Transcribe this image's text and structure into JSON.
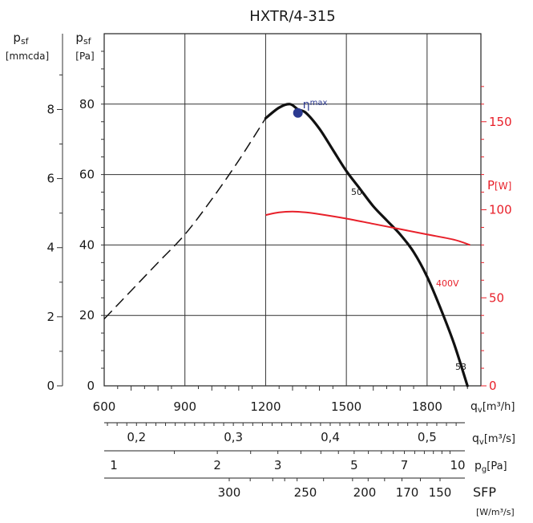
{
  "chart_data": {
    "type": "line",
    "title": "HXTR/4-315",
    "left_axis_outer": {
      "label_main": "p",
      "label_sub": "sf",
      "unit": "[mmcda]",
      "ticks": [
        "0",
        "2",
        "4",
        "6",
        "8"
      ]
    },
    "left_axis_inner": {
      "label_main": "p",
      "label_sub": "sf",
      "unit": "[Pa]",
      "ticks": [
        "0",
        "20",
        "40",
        "60",
        "80"
      ],
      "ylim": [
        0,
        100
      ]
    },
    "right_axis": {
      "label_main": "P",
      "unit": "[W]",
      "ticks": [
        "0",
        "50",
        "100",
        "150"
      ],
      "ylim": [
        0,
        200
      ]
    },
    "x_axis": {
      "label_main": "q",
      "label_sub": "v",
      "unit": "[m³/h]",
      "ticks": [
        "600",
        "900",
        "1200",
        "1500",
        "1800"
      ],
      "xlim": [
        600,
        2000
      ]
    },
    "scale_m3s": {
      "label_main": "q",
      "label_sub": "v",
      "unit": "[m³/s]",
      "ticks": [
        "0,2",
        "0,3",
        "0,4",
        "0,5"
      ]
    },
    "scale_pg": {
      "label_main": "p",
      "label_sub": "g",
      "unit": "[Pa]",
      "ticks": [
        "1",
        "2",
        "3",
        "5",
        "7",
        "10"
      ]
    },
    "scale_sfp": {
      "label_main": "SFP",
      "unit": "[W/m³/s]",
      "ticks": [
        "300",
        "250",
        "200",
        "170",
        "150"
      ]
    },
    "series": [
      {
        "name": "pressure",
        "color": "#111111",
        "dashed_x": [
          600,
          700,
          800,
          900,
          1000,
          1100,
          1200
        ],
        "dashed_y": [
          19,
          27,
          35,
          43,
          53,
          64,
          76
        ],
        "x": [
          1200,
          1250,
          1290,
          1320,
          1350,
          1400,
          1450,
          1500,
          1550,
          1600,
          1650,
          1700,
          1750,
          1800,
          1850,
          1900,
          1950
        ],
        "y": [
          76,
          79,
          80,
          78.5,
          77.5,
          73,
          67,
          61,
          56,
          51,
          47,
          43,
          38,
          31,
          22,
          12,
          0
        ]
      },
      {
        "name": "power",
        "color": "#e8202a",
        "x": [
          1200,
          1250,
          1300,
          1350,
          1400,
          1500,
          1600,
          1700,
          1800,
          1900,
          1960
        ],
        "y": [
          97,
          98.5,
          99,
          98.5,
          97.5,
          95,
          92,
          89,
          86,
          83,
          80
        ]
      }
    ],
    "annotations": [
      {
        "text": "η",
        "sub": "max",
        "x": 1320,
        "y": 77.5,
        "color": "#2b3990"
      },
      {
        "text": "50",
        "x": 1600,
        "y": 55
      },
      {
        "text": "53",
        "x": 1950,
        "y": 5
      },
      {
        "text": "400V",
        "x": 1890,
        "y": 88,
        "color": "#e8202a"
      }
    ]
  }
}
